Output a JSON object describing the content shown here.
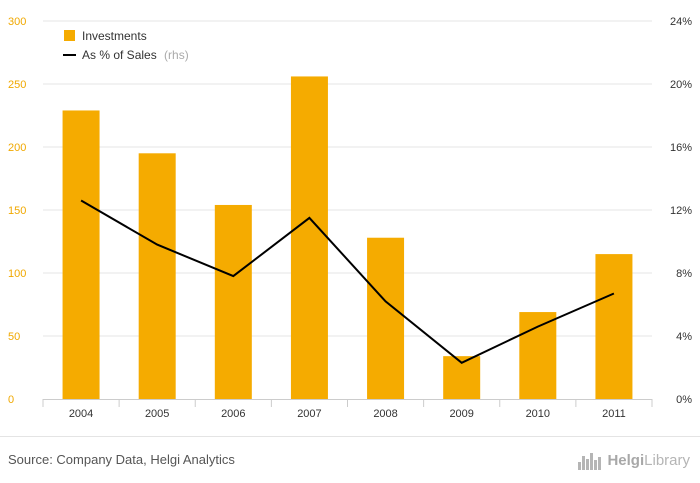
{
  "chart_data": {
    "type": "bar+line",
    "categories": [
      "2004",
      "2005",
      "2006",
      "2007",
      "2008",
      "2009",
      "2010",
      "2011"
    ],
    "series": [
      {
        "name": "Investments",
        "type": "bar",
        "axis": "left",
        "values": [
          229,
          195,
          154,
          256,
          128,
          34,
          69,
          115
        ]
      },
      {
        "name": "As % of Sales",
        "legend_suffix": "(rhs)",
        "type": "line",
        "axis": "right",
        "values": [
          12.6,
          9.8,
          7.8,
          11.5,
          6.2,
          2.3,
          4.6,
          6.7
        ]
      }
    ],
    "y_left": {
      "ylim": [
        0,
        300
      ],
      "ticks": [
        "0",
        "50",
        "100",
        "150",
        "200",
        "250",
        "300"
      ]
    },
    "y_right": {
      "ylim": [
        0,
        24
      ],
      "ticks": [
        "0%",
        "4%",
        "8%",
        "12%",
        "16%",
        "20%",
        "24%"
      ]
    },
    "grid": "horizontal",
    "legend_position": "top-left",
    "colors": {
      "bar": "#f5ab00",
      "line": "#000000",
      "left_tick": "#f0a800",
      "grid": "#e6e6e6"
    }
  },
  "footer": {
    "source": "Source: Company Data, Helgi Analytics",
    "brand_prefix": "Helgi",
    "brand_suffix": "Library",
    "brand_icon": "skyline-logo-icon"
  }
}
